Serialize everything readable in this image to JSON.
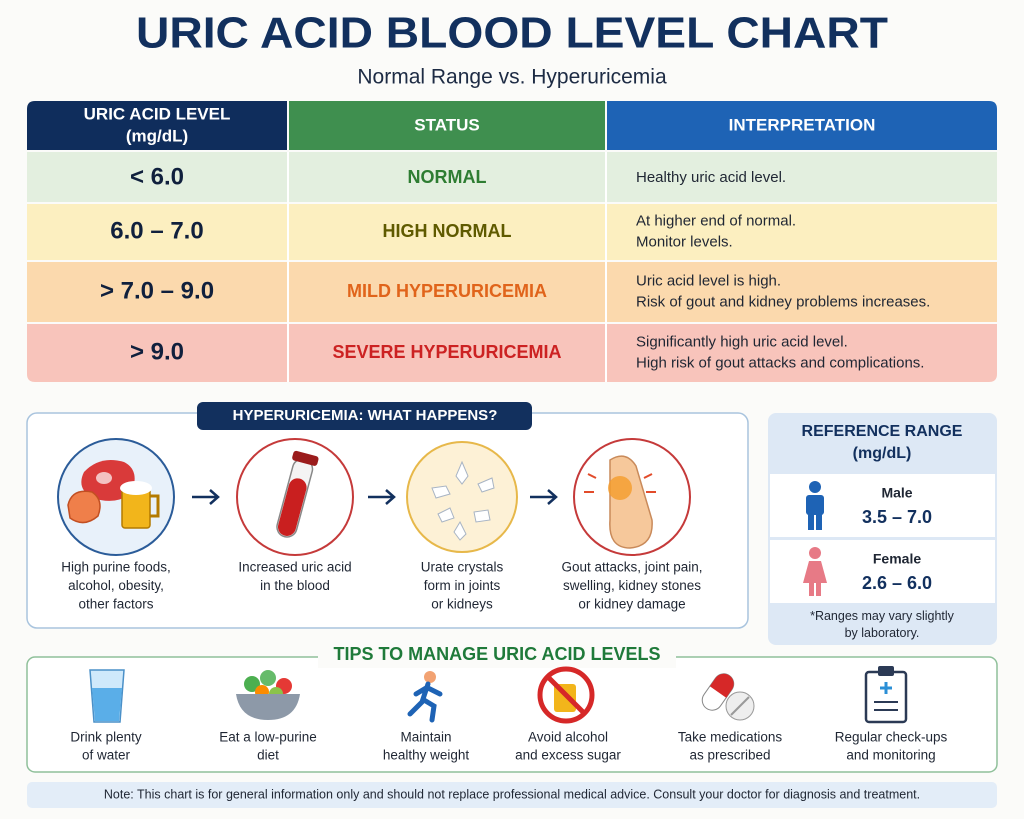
{
  "header": {
    "title": "URIC ACID BLOOD LEVEL CHART",
    "subtitle": "Normal Range vs. Hyperuricemia"
  },
  "table": {
    "columns": [
      [
        "URIC ACID LEVEL",
        "(mg/dL)"
      ],
      [
        "STATUS"
      ],
      [
        "INTERPRETATION"
      ]
    ],
    "rows": [
      [
        "< 6.0",
        "NORMAL",
        [
          "Healthy uric acid level."
        ]
      ],
      [
        "6.0 – 7.0",
        "HIGH NORMAL",
        [
          "At higher end of normal.",
          "Monitor levels."
        ]
      ],
      [
        "> 7.0 – 9.0",
        "MILD HYPERURICEMIA",
        [
          "Uric acid level is high.",
          "Risk of gout and kidney problems increases."
        ]
      ],
      [
        "> 9.0",
        "SEVERE HYPERURICEMIA",
        [
          "Significantly high uric acid level.",
          "High risk of gout attacks and complications."
        ]
      ]
    ]
  },
  "process": {
    "title": "HYPERURICEMIA: WHAT HAPPENS?",
    "steps": [
      [
        "High purine foods,",
        "alcohol, obesity,",
        "other factors"
      ],
      [
        "Increased uric acid",
        "in the blood"
      ],
      [
        "Urate crystals",
        "form in joints",
        "or kidneys"
      ],
      [
        "Gout attacks, joint pain,",
        "swelling, kidney stones",
        "or kidney damage"
      ]
    ]
  },
  "reference": {
    "title": [
      "REFERENCE RANGE",
      "(mg/dL)"
    ],
    "groups": [
      {
        "label": "Male",
        "range": "3.5 – 7.0"
      },
      {
        "label": "Female",
        "range": "2.6 – 6.0"
      }
    ],
    "note": [
      "*Ranges may vary slightly",
      "by laboratory."
    ]
  },
  "tips": {
    "title": "TIPS TO MANAGE URIC ACID LEVELS",
    "items": [
      [
        "Drink plenty",
        "of water"
      ],
      [
        "Eat a low-purine",
        "diet"
      ],
      [
        "Maintain",
        "healthy weight"
      ],
      [
        "Avoid alcohol",
        "and excess sugar"
      ],
      [
        "Take medications",
        "as prescribed"
      ],
      [
        "Regular check-ups",
        "and monitoring"
      ]
    ]
  },
  "footer": {
    "note": "Note: This chart is for general information only and should not replace professional medical advice. Consult your doctor for diagnosis and treatment."
  }
}
